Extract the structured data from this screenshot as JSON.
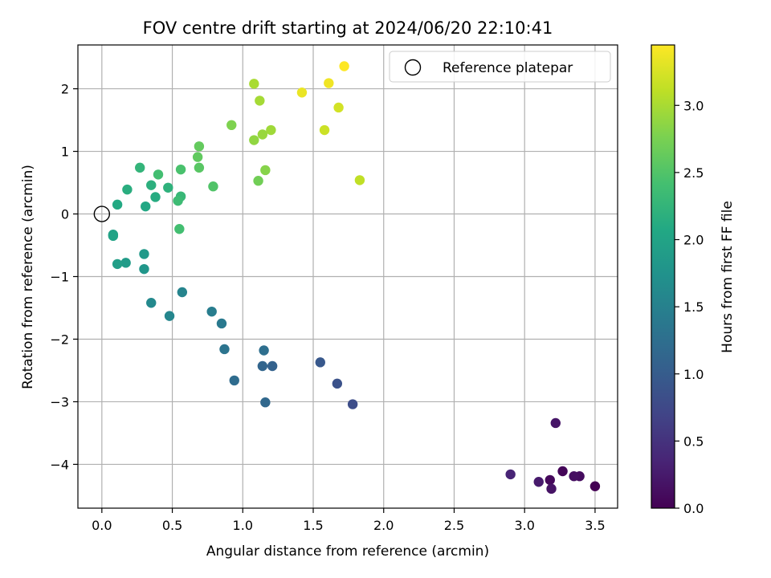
{
  "chart_data": {
    "type": "scatter",
    "title": "FOV centre drift starting at 2024/06/20 22:10:41",
    "xlabel": "Angular distance from reference (arcmin)",
    "ylabel": "Rotation from reference (arcmin)",
    "xlim": [
      -0.17,
      3.66
    ],
    "ylim": [
      -4.7,
      2.7
    ],
    "xticks": [
      0.0,
      0.5,
      1.0,
      1.5,
      2.0,
      2.5,
      3.0,
      3.5
    ],
    "xtick_labels": [
      "0.0",
      "0.5",
      "1.0",
      "1.5",
      "2.0",
      "2.5",
      "3.0",
      "3.5"
    ],
    "yticks": [
      -4,
      -3,
      -2,
      -1,
      0,
      1,
      2
    ],
    "ytick_labels": [
      "−4",
      "−3",
      "−2",
      "−1",
      "0",
      "1",
      "2"
    ],
    "grid": true,
    "colormap": "viridis",
    "colorbar": {
      "label": "Hours from first FF file",
      "range": [
        0.0,
        3.45
      ],
      "ticks": [
        0.0,
        0.5,
        1.0,
        1.5,
        2.0,
        2.5,
        3.0
      ],
      "tick_labels": [
        "0.0",
        "0.5",
        "1.0",
        "1.5",
        "2.0",
        "2.5",
        "3.0"
      ]
    },
    "legend": {
      "location": "top-right",
      "entries": [
        {
          "label": "Reference platepar",
          "marker": "open-circle"
        }
      ]
    },
    "reference_point": {
      "x": 0.0,
      "y": 0.0
    },
    "points": [
      {
        "x": 3.5,
        "y": -4.35,
        "hours": 0.0
      },
      {
        "x": 3.27,
        "y": -4.11,
        "hours": 0.04
      },
      {
        "x": 3.18,
        "y": -4.25,
        "hours": 0.07
      },
      {
        "x": 3.39,
        "y": -4.19,
        "hours": 0.11
      },
      {
        "x": 3.35,
        "y": -4.19,
        "hours": 0.14
      },
      {
        "x": 3.19,
        "y": -4.39,
        "hours": 0.18
      },
      {
        "x": 3.22,
        "y": -3.34,
        "hours": 0.2
      },
      {
        "x": 3.1,
        "y": -4.28,
        "hours": 0.25
      },
      {
        "x": 2.9,
        "y": -4.16,
        "hours": 0.35
      },
      {
        "x": 1.78,
        "y": -3.04,
        "hours": 0.8
      },
      {
        "x": 1.67,
        "y": -2.71,
        "hours": 0.87
      },
      {
        "x": 1.55,
        "y": -2.37,
        "hours": 0.95
      },
      {
        "x": 1.21,
        "y": -2.43,
        "hours": 1.08
      },
      {
        "x": 1.14,
        "y": -2.43,
        "hours": 1.12
      },
      {
        "x": 1.16,
        "y": -3.01,
        "hours": 1.16
      },
      {
        "x": 0.94,
        "y": -2.66,
        "hours": 1.22
      },
      {
        "x": 1.15,
        "y": -2.18,
        "hours": 1.26
      },
      {
        "x": 0.87,
        "y": -2.16,
        "hours": 1.33
      },
      {
        "x": 0.85,
        "y": -1.75,
        "hours": 1.4
      },
      {
        "x": 0.78,
        "y": -1.56,
        "hours": 1.45
      },
      {
        "x": 0.57,
        "y": -1.25,
        "hours": 1.55
      },
      {
        "x": 0.48,
        "y": -1.63,
        "hours": 1.58
      },
      {
        "x": 0.35,
        "y": -1.42,
        "hours": 1.62
      },
      {
        "x": 0.3,
        "y": -0.88,
        "hours": 1.8
      },
      {
        "x": 0.3,
        "y": -0.64,
        "hours": 1.85
      },
      {
        "x": 0.17,
        "y": -0.78,
        "hours": 1.88
      },
      {
        "x": 0.11,
        "y": -0.8,
        "hours": 1.92
      },
      {
        "x": 0.08,
        "y": -0.33,
        "hours": 1.96
      },
      {
        "x": 0.08,
        "y": -0.35,
        "hours": 2.0
      },
      {
        "x": 0.31,
        "y": 0.12,
        "hours": 2.05
      },
      {
        "x": 0.11,
        "y": 0.15,
        "hours": 2.08
      },
      {
        "x": 0.38,
        "y": 0.27,
        "hours": 2.12
      },
      {
        "x": 0.18,
        "y": 0.39,
        "hours": 2.15
      },
      {
        "x": 0.35,
        "y": 0.46,
        "hours": 2.18
      },
      {
        "x": 0.47,
        "y": 0.42,
        "hours": 2.2
      },
      {
        "x": 0.27,
        "y": 0.74,
        "hours": 2.25
      },
      {
        "x": 0.56,
        "y": 0.28,
        "hours": 2.3
      },
      {
        "x": 0.54,
        "y": 0.21,
        "hours": 2.35
      },
      {
        "x": 0.55,
        "y": -0.24,
        "hours": 2.4
      },
      {
        "x": 0.4,
        "y": 0.63,
        "hours": 2.4
      },
      {
        "x": 0.56,
        "y": 0.71,
        "hours": 2.45
      },
      {
        "x": 0.79,
        "y": 0.44,
        "hours": 2.5
      },
      {
        "x": 0.69,
        "y": 0.74,
        "hours": 2.55
      },
      {
        "x": 0.68,
        "y": 0.91,
        "hours": 2.6
      },
      {
        "x": 0.69,
        "y": 1.08,
        "hours": 2.62
      },
      {
        "x": 1.11,
        "y": 0.53,
        "hours": 2.7
      },
      {
        "x": 0.92,
        "y": 1.42,
        "hours": 2.78
      },
      {
        "x": 1.16,
        "y": 0.7,
        "hours": 2.82
      },
      {
        "x": 1.08,
        "y": 1.18,
        "hours": 2.88
      },
      {
        "x": 1.14,
        "y": 1.27,
        "hours": 2.92
      },
      {
        "x": 1.2,
        "y": 1.34,
        "hours": 2.95
      },
      {
        "x": 1.12,
        "y": 1.81,
        "hours": 2.98
      },
      {
        "x": 1.08,
        "y": 2.08,
        "hours": 3.0
      },
      {
        "x": 1.83,
        "y": 0.54,
        "hours": 3.12
      },
      {
        "x": 1.58,
        "y": 1.34,
        "hours": 3.18
      },
      {
        "x": 1.68,
        "y": 1.7,
        "hours": 3.22
      },
      {
        "x": 1.42,
        "y": 1.94,
        "hours": 3.35
      },
      {
        "x": 1.61,
        "y": 2.09,
        "hours": 3.38
      },
      {
        "x": 1.72,
        "y": 2.36,
        "hours": 3.45
      }
    ]
  }
}
